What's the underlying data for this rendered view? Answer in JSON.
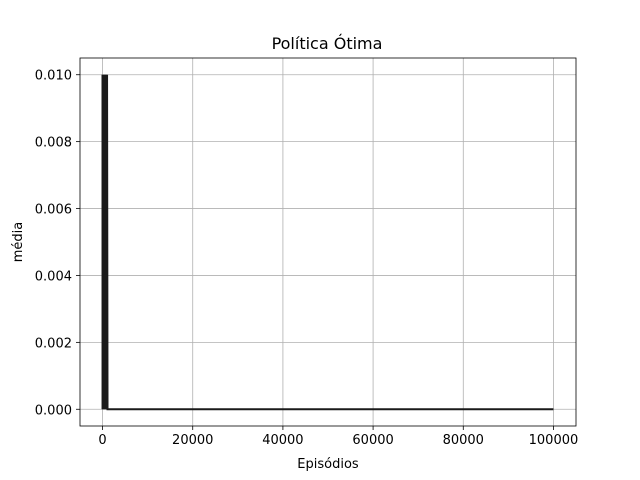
{
  "chart_data": {
    "type": "line",
    "title": "Política Ótima",
    "xlabel": "Episódios",
    "ylabel": "média",
    "xlim": [
      -5000,
      105000
    ],
    "ylim": [
      -0.0005,
      0.0105
    ],
    "xticks": [
      0,
      20000,
      40000,
      60000,
      80000,
      100000
    ],
    "xtick_labels": [
      "0",
      "20000",
      "40000",
      "60000",
      "80000",
      "100000"
    ],
    "yticks": [
      0.0,
      0.002,
      0.004,
      0.006,
      0.008,
      0.01
    ],
    "ytick_labels": [
      "0.000",
      "0.002",
      "0.004",
      "0.006",
      "0.008",
      "0.010"
    ],
    "grid": true,
    "series": [
      {
        "color": "#1a1a1a",
        "description": "values alternate between 0.000 and 0.010 over the first ~1000 episodes, then stay at 0.000 through 100000",
        "x": [
          0,
          100,
          200,
          300,
          400,
          500,
          600,
          700,
          800,
          900,
          1000,
          1100,
          100000
        ],
        "y": [
          0.01,
          0.0,
          0.01,
          0.0,
          0.01,
          0.0,
          0.01,
          0.0,
          0.01,
          0.0,
          0.01,
          0.0,
          0.0
        ]
      }
    ]
  }
}
